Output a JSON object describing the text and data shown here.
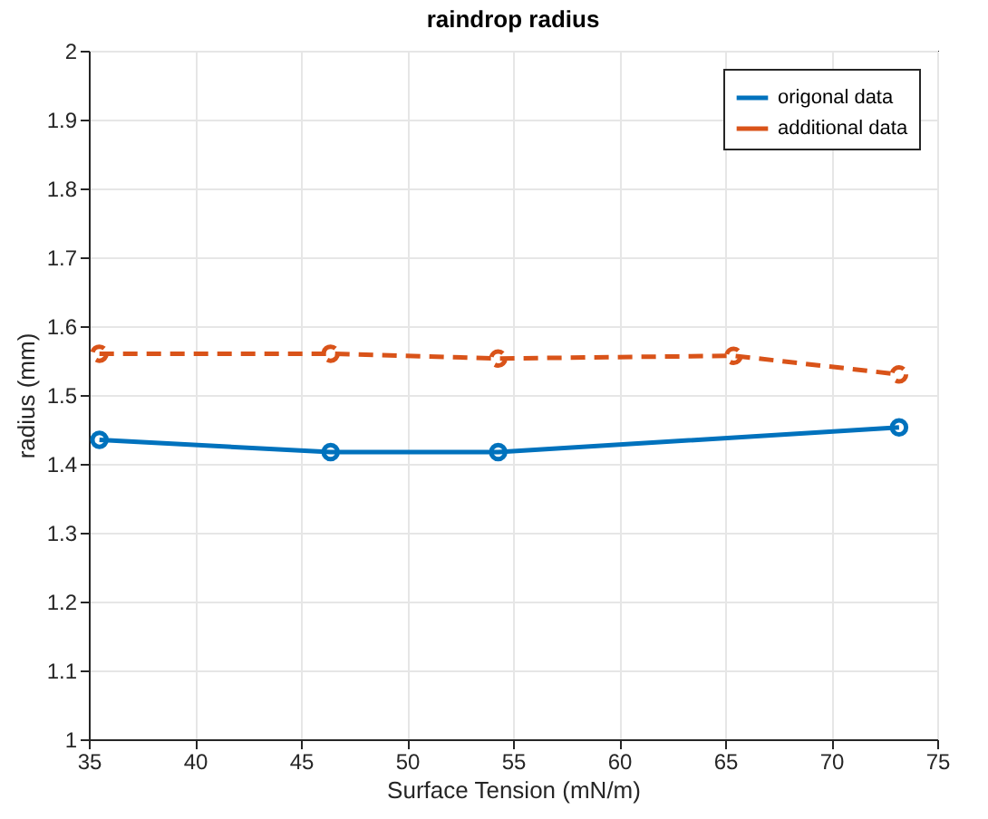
{
  "chart_data": {
    "type": "line",
    "title": "raindrop radius",
    "xlabel": "Surface Tension (mN/m)",
    "ylabel": "radius (mm)",
    "xlim": [
      35,
      75
    ],
    "xticks": [
      35,
      40,
      45,
      50,
      55,
      60,
      65,
      70,
      75
    ],
    "ylim": [
      1,
      2
    ],
    "yticks": [
      1,
      1.1,
      1.2,
      1.3,
      1.4,
      1.5,
      1.6,
      1.7,
      1.8,
      1.9,
      2
    ],
    "grid": true,
    "legend": "top right",
    "marker": "circle",
    "series": [
      {
        "name": "origonal data",
        "color": "#0072bd",
        "line_style": "solid",
        "x": [
          35.5,
          46.4,
          54.3,
          73.2
        ],
        "values": [
          1.435,
          1.417,
          1.417,
          1.453
        ]
      },
      {
        "name": "additional data",
        "color": "#d95319",
        "line_style": "dashed",
        "x": [
          35.5,
          46.4,
          54.3,
          65.4,
          73.2
        ],
        "values": [
          1.56,
          1.56,
          1.553,
          1.557,
          1.53
        ]
      }
    ]
  }
}
